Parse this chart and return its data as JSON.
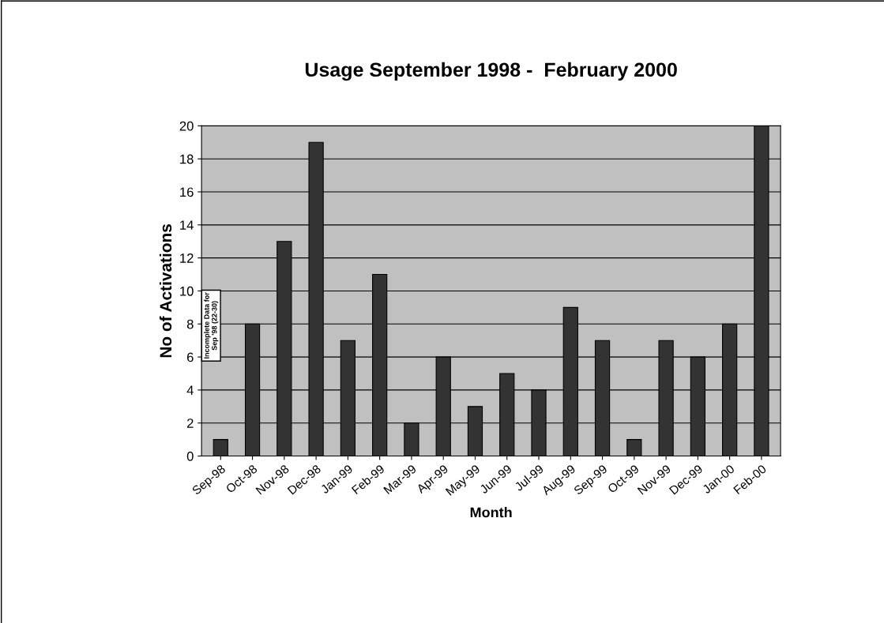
{
  "chart_data": {
    "type": "bar",
    "title": "Usage September 1998 -  February 2000",
    "xlabel": "Month",
    "ylabel": "No of Activations",
    "categories": [
      "Sep-98",
      "Oct-98",
      "Nov-98",
      "Dec-98",
      "Jan-99",
      "Feb-99",
      "Mar-99",
      "Apr-99",
      "May-99",
      "Jun-99",
      "Jul-99",
      "Aug-99",
      "Sep-99",
      "Oct-99",
      "Nov-99",
      "Dec-99",
      "Jan-00",
      "Feb-00"
    ],
    "values": [
      1,
      8,
      13,
      19,
      7,
      11,
      2,
      6,
      3,
      5,
      4,
      9,
      7,
      1,
      7,
      6,
      8,
      20
    ],
    "color": "#333333",
    "ylim": [
      0,
      20
    ],
    "yticks": [
      0,
      2,
      4,
      6,
      8,
      10,
      12,
      14,
      16,
      18,
      20
    ],
    "grid": "y",
    "legend": false,
    "annotations": [
      "Incomplete Data for\nSep '98 (22-30)"
    ]
  }
}
